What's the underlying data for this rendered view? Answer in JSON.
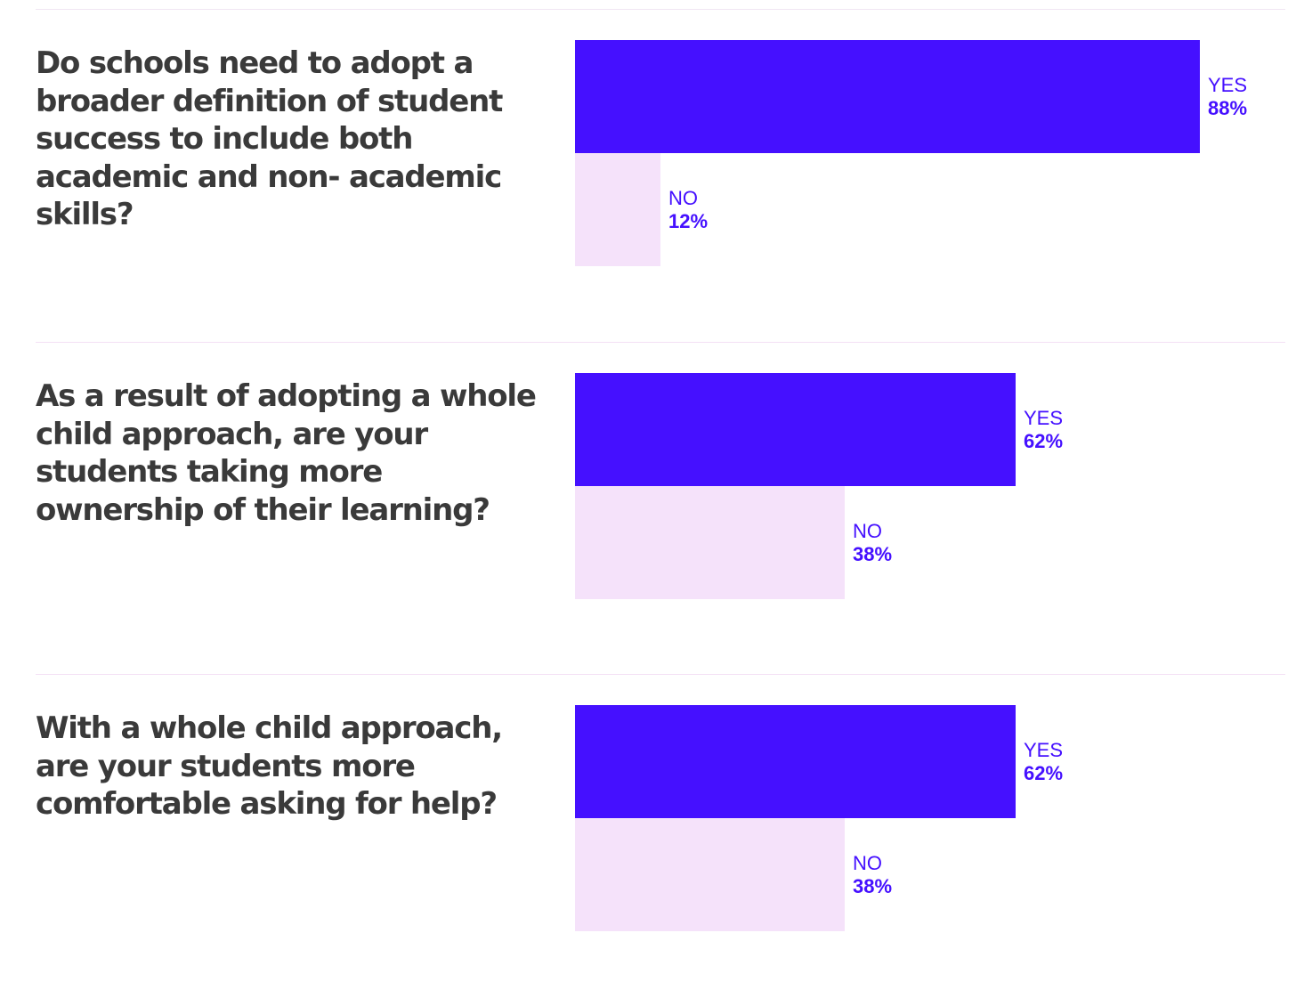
{
  "colors": {
    "yes": "#4510ff",
    "no": "#f5e2fa",
    "question_text": "#3a3a3a",
    "divider": "#f3e0f5"
  },
  "chart_data": [
    {
      "type": "bar",
      "orientation": "horizontal",
      "title": "Do schools need to adopt a broader definition of student success to include both academic and non- academic skills?",
      "categories": [
        "YES",
        "NO"
      ],
      "values": [
        88,
        12
      ],
      "value_labels": [
        "88%",
        "12%"
      ],
      "xlim": [
        0,
        100
      ]
    },
    {
      "type": "bar",
      "orientation": "horizontal",
      "title": "As a result of adopting a whole child approach, are your students taking more ownership of their learning?",
      "categories": [
        "YES",
        "NO"
      ],
      "values": [
        62,
        38
      ],
      "value_labels": [
        "62%",
        "38%"
      ],
      "xlim": [
        0,
        100
      ]
    },
    {
      "type": "bar",
      "orientation": "horizontal",
      "title": "With a whole child approach, are your students more comfortable asking for help?",
      "categories": [
        "YES",
        "NO"
      ],
      "values": [
        62,
        38
      ],
      "value_labels": [
        "62%",
        "38%"
      ],
      "xlim": [
        0,
        100
      ]
    }
  ]
}
